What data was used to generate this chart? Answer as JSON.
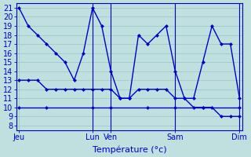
{
  "xlabel": "Température (°c)",
  "background_color": "#c0e0e0",
  "grid_color": "#a0c8c8",
  "line_color": "#0000cc",
  "yticks": [
    8,
    9,
    10,
    11,
    12,
    13,
    14,
    15,
    16,
    17,
    18,
    19,
    20,
    21
  ],
  "ylim": [
    7.5,
    21.5
  ],
  "xlim": [
    -0.3,
    24.3
  ],
  "day_labels": [
    "Jeu",
    "Lun",
    "Ven",
    "Sam",
    "Dim"
  ],
  "day_positions": [
    0,
    8,
    10,
    17,
    24
  ],
  "vline_positions": [
    8,
    10,
    17,
    24
  ],
  "series1_x": [
    0,
    1,
    2,
    3,
    4,
    5,
    6,
    7,
    8,
    9,
    10,
    11,
    12,
    13,
    14,
    15,
    16,
    17,
    18,
    19,
    20,
    21,
    22,
    23,
    24
  ],
  "series1_y": [
    21,
    19,
    18,
    17,
    16,
    15,
    13,
    16,
    21,
    19,
    14,
    11,
    11,
    18,
    17,
    18,
    19,
    14,
    11,
    11,
    15,
    19,
    17,
    17,
    11
  ],
  "series2_x": [
    0,
    1,
    2,
    3,
    4,
    5,
    6,
    7,
    8,
    9,
    10,
    11,
    12,
    13,
    14,
    15,
    16,
    17,
    18,
    19,
    20,
    21,
    22,
    23,
    24
  ],
  "series2_y": [
    13,
    13,
    13,
    12,
    12,
    12,
    12,
    12,
    12,
    12,
    12,
    11,
    11,
    12,
    12,
    12,
    12,
    11,
    11,
    10,
    10,
    10,
    9,
    9,
    9
  ],
  "series3_x": [
    0,
    3,
    8,
    10,
    14,
    17,
    20,
    24
  ],
  "series3_y": [
    10,
    10,
    10,
    10,
    10,
    10,
    10,
    10
  ],
  "n_points": 25,
  "xlabel_fontsize": 8,
  "tick_fontsize": 7,
  "linewidth": 1.0,
  "markersize": 2.5
}
